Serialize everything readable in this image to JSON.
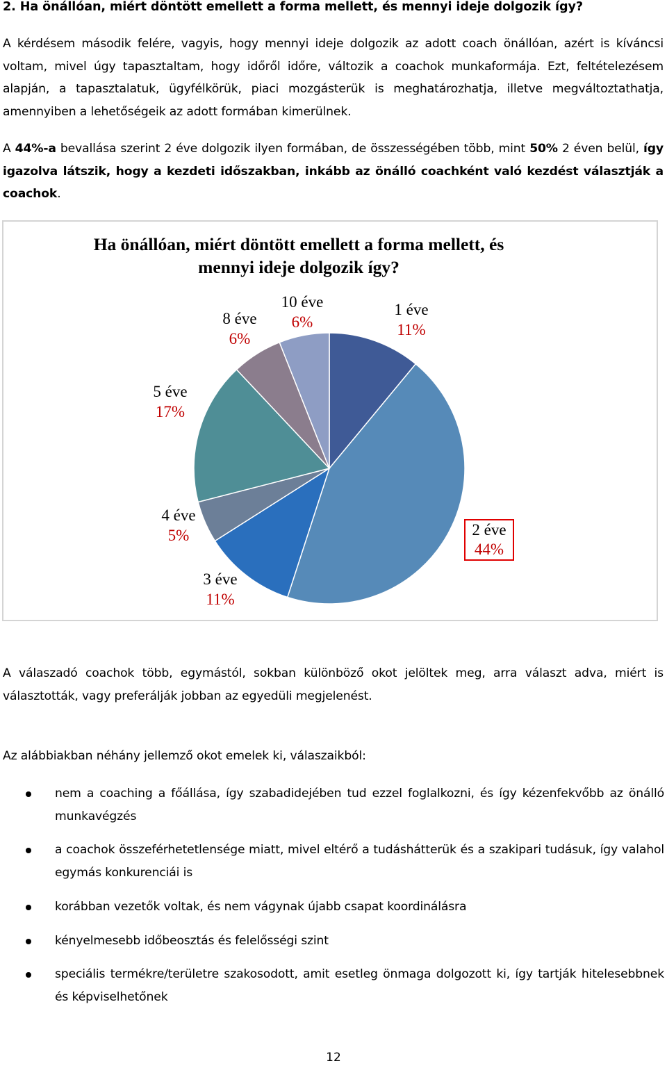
{
  "heading": "2. Ha önállóan, miért döntött emellett a forma mellett, és mennyi ideje dolgozik így?",
  "para1": {
    "text": "A kérdésem második felére, vagyis, hogy mennyi ideje dolgozik az adott coach önállóan, azért is kíváncsi voltam, mivel úgy tapasztaltam, hogy időről időre, változik a coachok munkaformája. Ezt, feltételezésem alapján, a tapasztalatuk, ügyfélkörük, piaci mozgásterük is meghatározhatja, illetve megváltoztathatja, amennyiben a lehetőségeik az adott formában kimerülnek."
  },
  "para2": {
    "part1": "A ",
    "bold1": "44%-a",
    "part2": " bevallása szerint 2 éve dolgozik ilyen formában, de összességében több, mint ",
    "bold2": "50%",
    "part3": " 2 éven belül, ",
    "bold3": "így igazolva látszik, hogy a kezdeti időszakban, inkább az önálló coachként való kezdést választják a coachok",
    "part4": "."
  },
  "chart_data": {
    "type": "pie",
    "title": "Ha önállóan, miért döntött emellett a forma mellett, és mennyi ideje dolgozik így?",
    "slices": [
      {
        "label": "1 éve",
        "value": 11,
        "pct": "11%",
        "color": "#3f5a96"
      },
      {
        "label": "2 éve",
        "value": 44,
        "pct": "44%",
        "color": "#568ab8"
      },
      {
        "label": "3 éve",
        "value": 11,
        "pct": "11%",
        "color": "#2a6fbd"
      },
      {
        "label": "4 éve",
        "value": 5,
        "pct": "5%",
        "color": "#6c7f98"
      },
      {
        "label": "5 éve",
        "value": 17,
        "pct": "17%",
        "color": "#4f8e96"
      },
      {
        "label": "8 éve",
        "value": 6,
        "pct": "6%",
        "color": "#8b7d8d"
      },
      {
        "label": "10 éve",
        "value": 6,
        "pct": "6%",
        "color": "#8e9dc4"
      }
    ],
    "highlighted": "2 éve",
    "label_color": "#c00000"
  },
  "para3": {
    "text": "A válaszadó coachok több, egymástól, sokban különböző okot jelöltek meg, arra választ adva, miért is választották, vagy preferálják jobban az egyedüli megjelenést."
  },
  "para4": {
    "text": "Az alábbiakban néhány jellemző okot emelek ki, válaszaikból:"
  },
  "bullets": [
    "nem a coaching a főállása, így szabadidejében tud ezzel foglalkozni, és így kézenfekvőbb az önálló munkavégzés",
    "a coachok összeférhetetlensége miatt, mivel eltérő a tudáshátterük és a szakipari tudásuk, így valahol egymás konkurenciái is",
    "korábban vezetők voltak, és nem vágynak újabb csapat koordinálásra",
    "kényelmesebb időbeosztás és felelősségi szint",
    "speciális termékre/területre szakosodott, amit esetleg önmaga dolgozott ki, így tartják hitelesebbnek és képviselhetőnek"
  ],
  "page_number": "12"
}
